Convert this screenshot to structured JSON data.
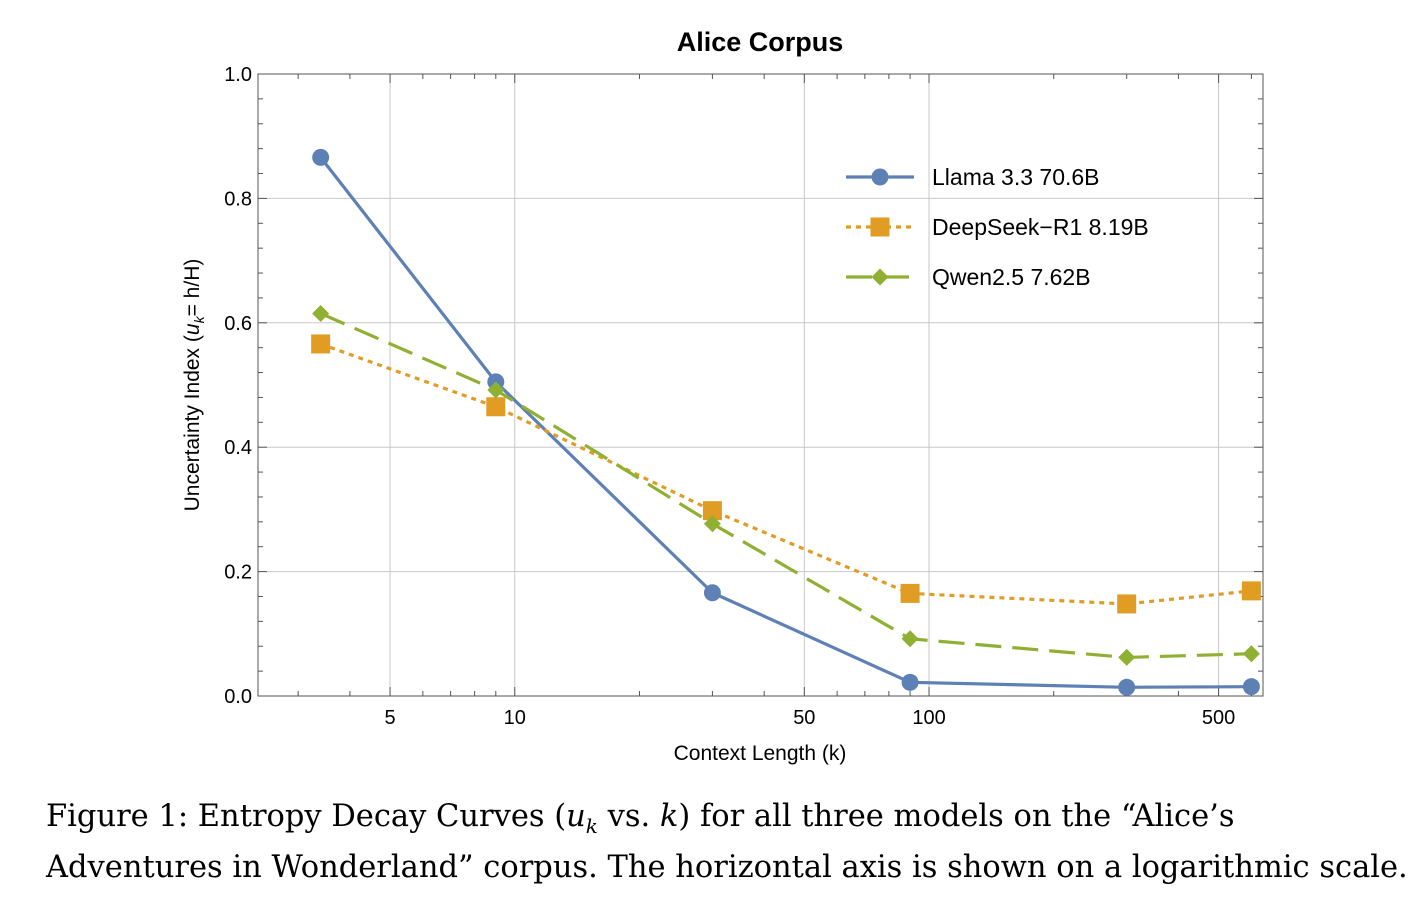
{
  "chart_data": {
    "type": "line",
    "title": "Alice Corpus",
    "xlabel": "Context Length (k)",
    "ylabel_prefix": "Uncertainty Index (",
    "ylabel_var": "u",
    "ylabel_sub": "k",
    "ylabel_suffix": "= h/H)",
    "xscale": "log",
    "xlim": [
      2.4,
      640
    ],
    "ylim": [
      0,
      1.0
    ],
    "x_ticks": [
      5,
      10,
      50,
      100,
      500
    ],
    "x_tick_labels": [
      "5",
      "10",
      "50",
      "100",
      "500"
    ],
    "y_ticks": [
      0.0,
      0.2,
      0.4,
      0.6,
      0.8,
      1.0
    ],
    "y_tick_labels": [
      "0.0",
      "0.2",
      "0.4",
      "0.6",
      "0.8",
      "1.0"
    ],
    "grid": true,
    "legend_position": "top-right",
    "x": [
      3.4,
      9,
      30,
      90,
      300,
      600
    ],
    "series": [
      {
        "name": "Llama 3.3 70.6B",
        "color": "#5E81B5",
        "line": "solid",
        "marker": "circle",
        "values": [
          0.866,
          0.505,
          0.166,
          0.022,
          0.014,
          0.015
        ]
      },
      {
        "name": "DeepSeek−R1 8.19B",
        "color": "#E19C24",
        "line": "dotted",
        "marker": "square",
        "values": [
          0.566,
          0.465,
          0.298,
          0.165,
          0.148,
          0.169
        ]
      },
      {
        "name": "Qwen2.5 7.62B",
        "color": "#8FB032",
        "line": "dashed",
        "marker": "diamond",
        "values": [
          0.615,
          0.492,
          0.277,
          0.092,
          0.062,
          0.068
        ]
      }
    ]
  },
  "caption": {
    "prefix": "Figure 1: Entropy Decay Curves (",
    "var_u": "u",
    "var_sub": "k",
    "middle": " vs. ",
    "var_k": "k",
    "suffix": ") for all three models on the “Alice’s Adventures in Wonderland” corpus. The horizontal axis is shown on a logarithmic scale."
  }
}
